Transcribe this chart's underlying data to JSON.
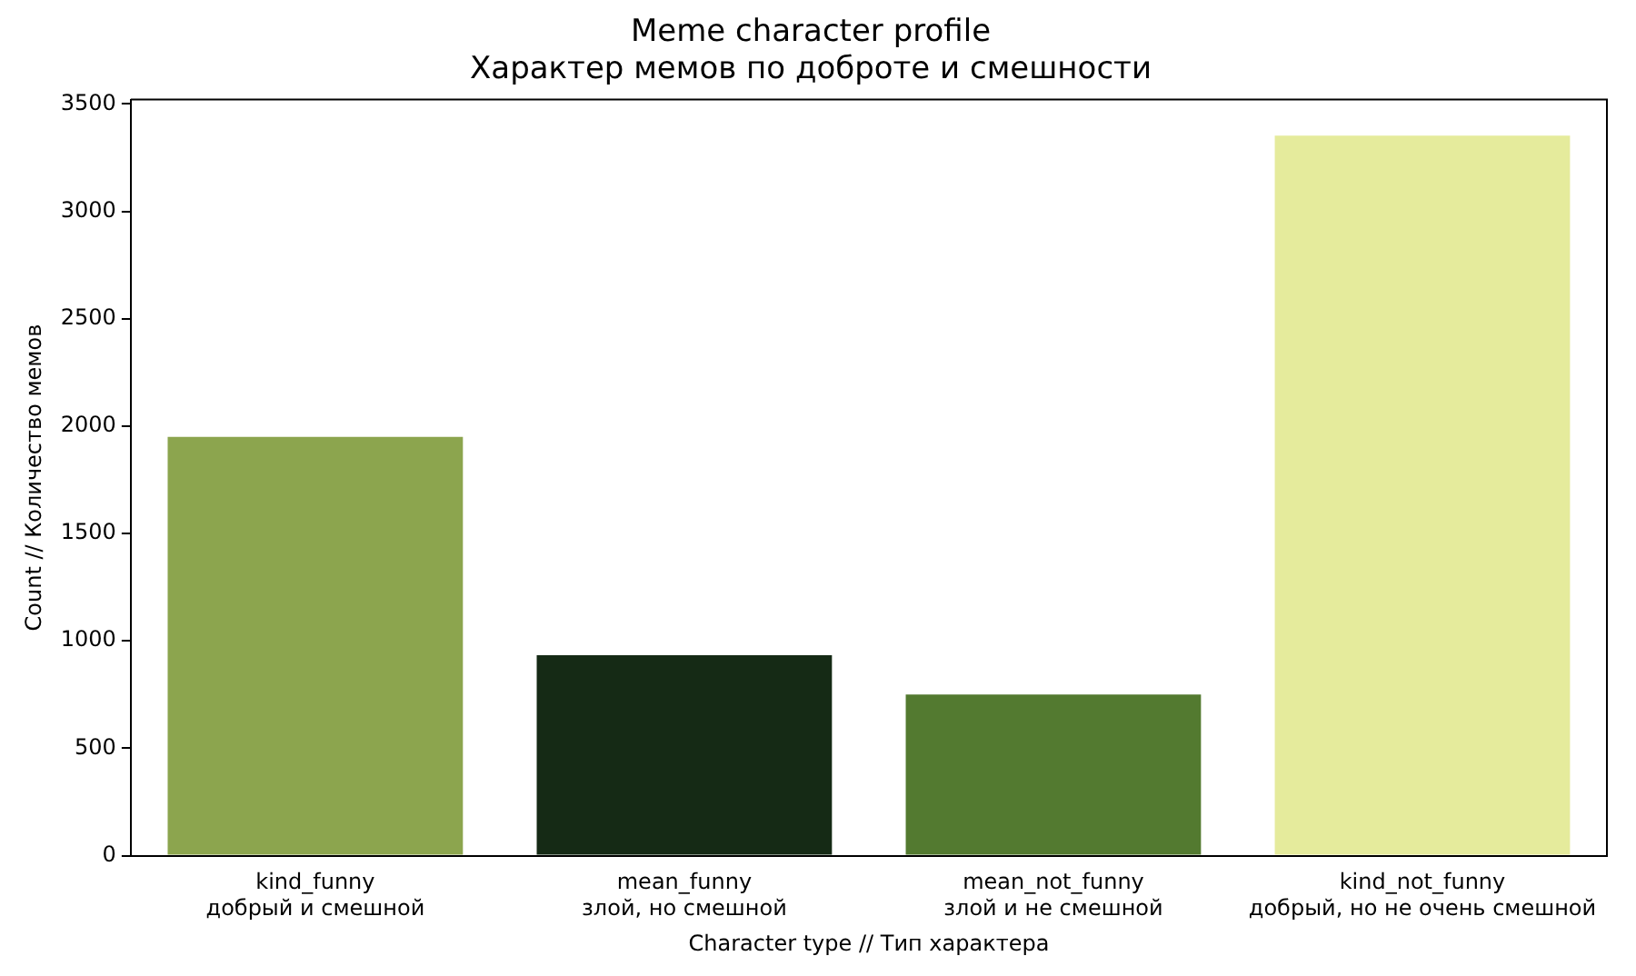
{
  "chart_data": {
    "type": "bar",
    "title": "Meme character profile\nХарактер мемов по доброте и смешности",
    "xlabel": "Character type // Тип характера",
    "ylabel": "Count // Количество мемов",
    "categories": [
      "kind_funny\nдобрый и смешной",
      "mean_funny\nзлой, но смешной",
      "mean_not_funny\nзлой и не смешной",
      "kind_not_funny\nдобрый, но не очень смешной"
    ],
    "values": [
      1950,
      933,
      750,
      3352
    ],
    "colors": [
      "#8ca54e",
      "#152a15",
      "#537a30",
      "#e5eb9c"
    ],
    "ylim": [
      0,
      3520
    ],
    "yticks": [
      0,
      500,
      1000,
      1500,
      2000,
      2500,
      3000,
      3500
    ],
    "grid": false,
    "legend": false
  }
}
